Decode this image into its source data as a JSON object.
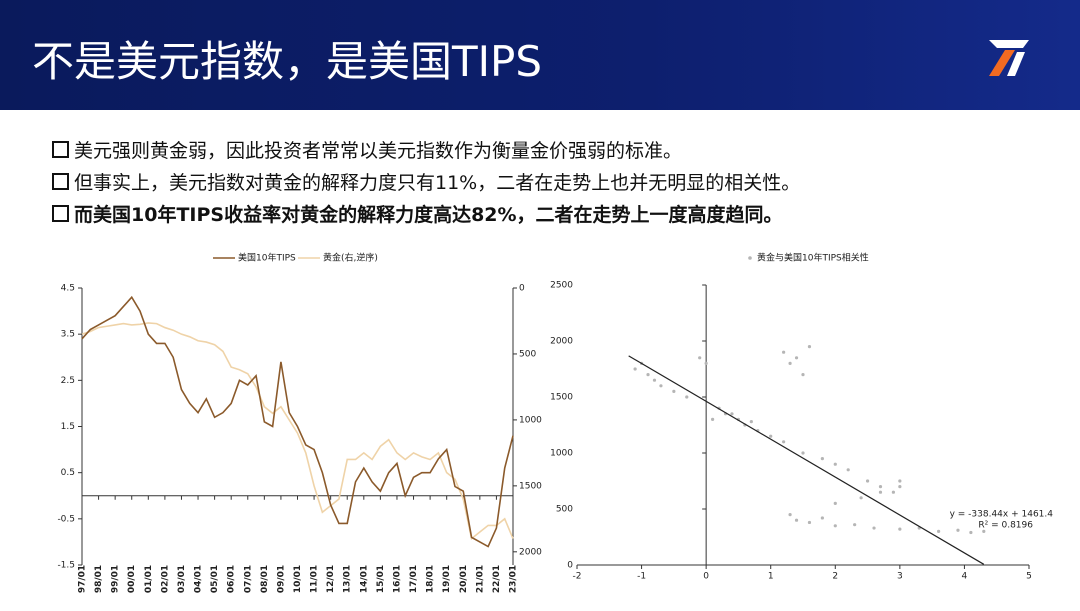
{
  "header": {
    "title": "不是美元指数，是美国TIPS"
  },
  "bullets": [
    "美元强则黄金弱，因此投资者常常以美元指数作为衡量金价强弱的标准。",
    "但事实上，美元指数对黄金的解释力度只有11%，二者在走势上也并无明显的相关性。",
    "而美国10年TIPS收益率对黄金的解释力度高达82%，二者在走势上一度高度趋同。"
  ],
  "chart_data": [
    {
      "type": "line",
      "categories": [
        "97/01",
        null,
        "98/01",
        null,
        "99/01",
        null,
        "00/01",
        null,
        "01/01",
        null,
        "02/01",
        null,
        "03/01",
        null,
        "04/01",
        null,
        "05/01",
        null,
        "06/01",
        null,
        "07/01",
        null,
        "08/01",
        null,
        "09/01",
        null,
        "10/01",
        null,
        "11/01",
        null,
        "12/01",
        null,
        "13/01",
        null,
        "14/01",
        null,
        "15/01",
        null,
        "16/01",
        null,
        "17/01",
        null,
        "18/01",
        null,
        "19/01",
        null,
        "20/01",
        null,
        "21/01",
        null,
        "22/01",
        null,
        "23/01"
      ],
      "series": [
        {
          "name": "美国10年TIPS",
          "color": "#8b5a2b",
          "values": [
            3.4,
            3.6,
            3.7,
            3.8,
            3.9,
            4.1,
            4.3,
            4.0,
            3.5,
            3.3,
            3.3,
            3.0,
            2.3,
            2.0,
            1.8,
            2.1,
            1.7,
            1.8,
            2.0,
            2.5,
            2.4,
            2.6,
            1.6,
            1.5,
            2.9,
            1.8,
            1.5,
            1.1,
            1.0,
            0.5,
            -0.2,
            -0.6,
            -0.6,
            0.3,
            0.6,
            0.3,
            0.1,
            0.5,
            0.7,
            0.0,
            0.4,
            0.5,
            0.5,
            0.8,
            1.0,
            0.2,
            0.1,
            -0.9,
            -1.0,
            -1.1,
            -0.7,
            0.6,
            1.3
          ]
        },
        {
          "name": "黄金(右,逆序)",
          "color": "#efd3a8",
          "axis": "y2",
          "values": [
            350,
            330,
            300,
            290,
            280,
            270,
            280,
            275,
            265,
            270,
            300,
            320,
            350,
            370,
            400,
            410,
            430,
            480,
            600,
            620,
            650,
            750,
            900,
            950,
            900,
            1000,
            1100,
            1250,
            1500,
            1700,
            1650,
            1600,
            1300,
            1300,
            1250,
            1300,
            1200,
            1150,
            1250,
            1300,
            1250,
            1280,
            1300,
            1250,
            1400,
            1450,
            1600,
            1900,
            1850,
            1800,
            1800,
            1750,
            1900
          ]
        }
      ],
      "ylim": [
        -1.5,
        4.5
      ],
      "yticks": [
        -1.5,
        -0.5,
        0.5,
        1.5,
        2.5,
        3.5,
        4.5
      ],
      "y2lim": [
        2100,
        0
      ],
      "y2ticks": [
        0,
        500,
        1000,
        1500,
        2000
      ]
    },
    {
      "type": "scatter",
      "series": [
        {
          "name": "黄金与美国10年TIPS相关性",
          "color": "#b5b5b5",
          "x": [
            -1.1,
            -1.0,
            -0.9,
            -0.8,
            -0.7,
            -0.5,
            -0.3,
            0.2,
            0.1,
            0.3,
            0.5,
            0.6,
            0.7,
            0.8,
            0.4,
            1.0,
            1.2,
            1.5,
            1.8,
            2.0,
            2.2,
            2.5,
            2.7,
            2.9,
            3.0,
            -0.1,
            0.0,
            1.2,
            1.3,
            1.5,
            1.4,
            1.6,
            1.4,
            1.6,
            1.8,
            2.0,
            2.3,
            2.6,
            3.0,
            3.3,
            3.6,
            3.9,
            4.1,
            4.3,
            1.3,
            2.0,
            2.4,
            2.7,
            3.0
          ],
          "values": [
            1750,
            1800,
            1700,
            1650,
            1600,
            1550,
            1500,
            1400,
            1300,
            1350,
            1300,
            1250,
            1280,
            1200,
            1350,
            1150,
            1100,
            1000,
            950,
            900,
            850,
            750,
            700,
            650,
            750,
            1850,
            1800,
            1900,
            1800,
            1700,
            1850,
            1950,
            400,
            380,
            420,
            350,
            360,
            330,
            320,
            330,
            300,
            310,
            290,
            300,
            450,
            550,
            600,
            650,
            700
          ]
        }
      ],
      "trendline": {
        "slope": -338.44,
        "intercept": 1461.4,
        "x": [
          -1.2,
          4.3
        ],
        "label": "y = -338.44x + 1461.4",
        "r2_label": "R² = 0.8196"
      },
      "xlim": [
        -2,
        5
      ],
      "xticks": [
        -2,
        -1,
        0,
        1,
        2,
        3,
        4,
        5
      ],
      "ylim": [
        0,
        2500
      ],
      "yticks": [
        0,
        500,
        1000,
        1500,
        2000,
        2500
      ]
    }
  ]
}
